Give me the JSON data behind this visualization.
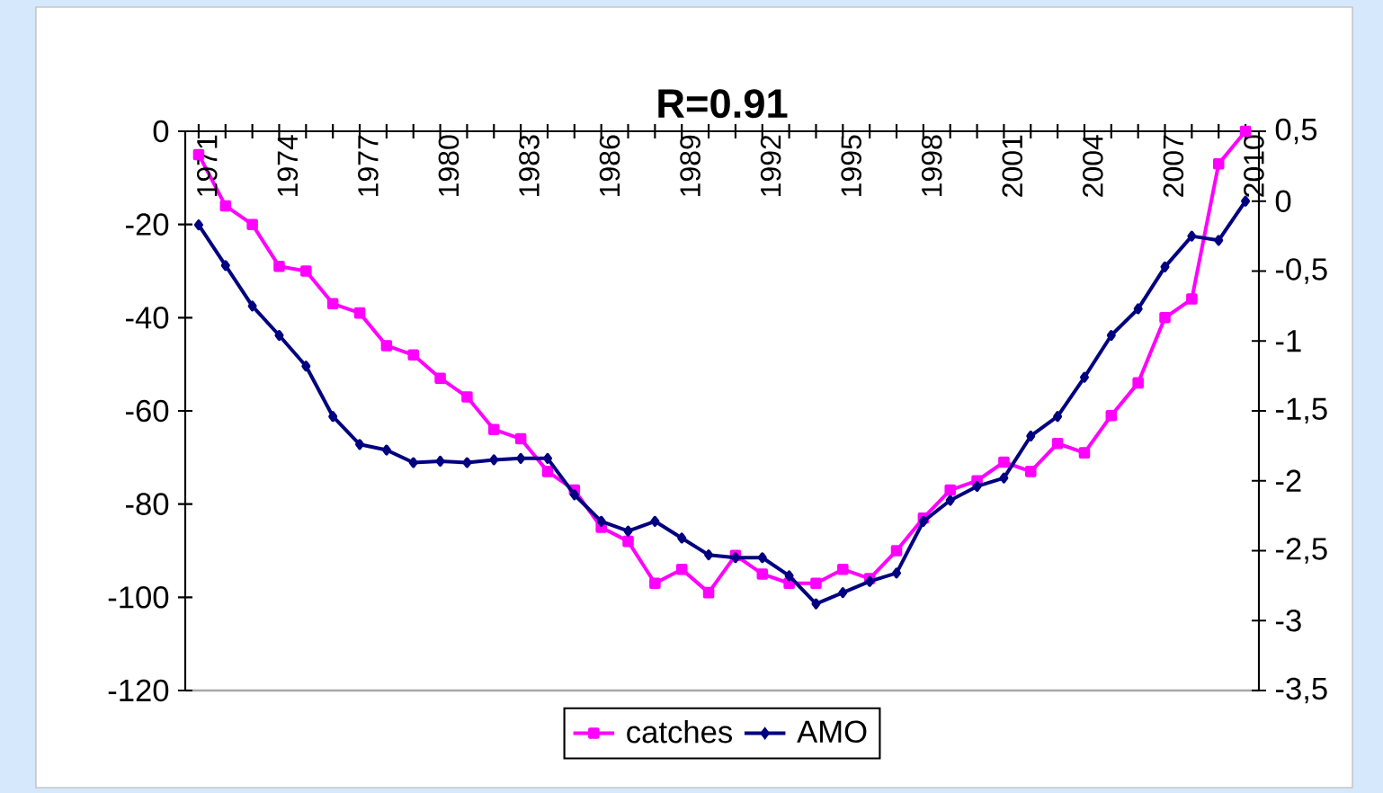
{
  "chart_data": {
    "type": "line",
    "title": "R=0.91",
    "categories": [
      "1971",
      null,
      null,
      "1974",
      null,
      null,
      "1977",
      null,
      null,
      "1980",
      null,
      null,
      "1983",
      null,
      null,
      "1986",
      null,
      null,
      "1989",
      null,
      null,
      "1992",
      null,
      null,
      "1995",
      null,
      null,
      "1998",
      null,
      null,
      "2001",
      null,
      null,
      "2004",
      null,
      null,
      "2007",
      null,
      null,
      "2010"
    ],
    "series": [
      {
        "name": "catches",
        "color": "#ff00ff",
        "marker": "square",
        "values": [
          -5,
          -16,
          -20,
          -29,
          -30,
          -37,
          -39,
          -46,
          -48,
          -53,
          -57,
          -64,
          -66,
          -73,
          -77,
          -85,
          -88,
          -97,
          -94,
          -99,
          -91,
          -95,
          -97,
          -97,
          -94,
          -96,
          -90,
          -83,
          -77,
          -75,
          -71,
          -73,
          -67,
          -69,
          -61,
          -54,
          -40,
          -36,
          -7,
          0
        ]
      },
      {
        "name": "AMO",
        "color": "#000080",
        "marker": "diamond",
        "axis": "y2",
        "values": [
          -0.17,
          -0.46,
          -0.75,
          -0.96,
          -1.18,
          -1.54,
          -1.74,
          -1.78,
          -1.87,
          -1.86,
          -1.87,
          -1.85,
          -1.84,
          -1.84,
          -2.1,
          -2.29,
          -2.36,
          -2.29,
          -2.41,
          -2.53,
          -2.55,
          -2.55,
          -2.68,
          -2.88,
          -2.8,
          -2.72,
          -2.66,
          -2.29,
          -2.14,
          -2.04,
          -1.98,
          -1.68,
          -1.54,
          -1.26,
          -0.96,
          -0.77,
          -0.47,
          -0.25,
          -0.28,
          0
        ]
      }
    ],
    "ylim": [
      -120,
      0
    ],
    "yticks": [
      -120,
      -100,
      -80,
      -60,
      -40,
      -20,
      0
    ],
    "y2lim": [
      -3.5,
      0.5
    ],
    "y2ticks": [
      {
        "value": -3.5,
        "label": "-3,5"
      },
      -3,
      {
        "value": -2.5,
        "label": "-2,5"
      },
      -2,
      {
        "value": -1.5,
        "label": "-1,5"
      },
      -1,
      {
        "value": -0.5,
        "label": "-0,5"
      },
      0,
      {
        "value": 0.5,
        "label": "0,5"
      }
    ],
    "legend": "bottom"
  }
}
